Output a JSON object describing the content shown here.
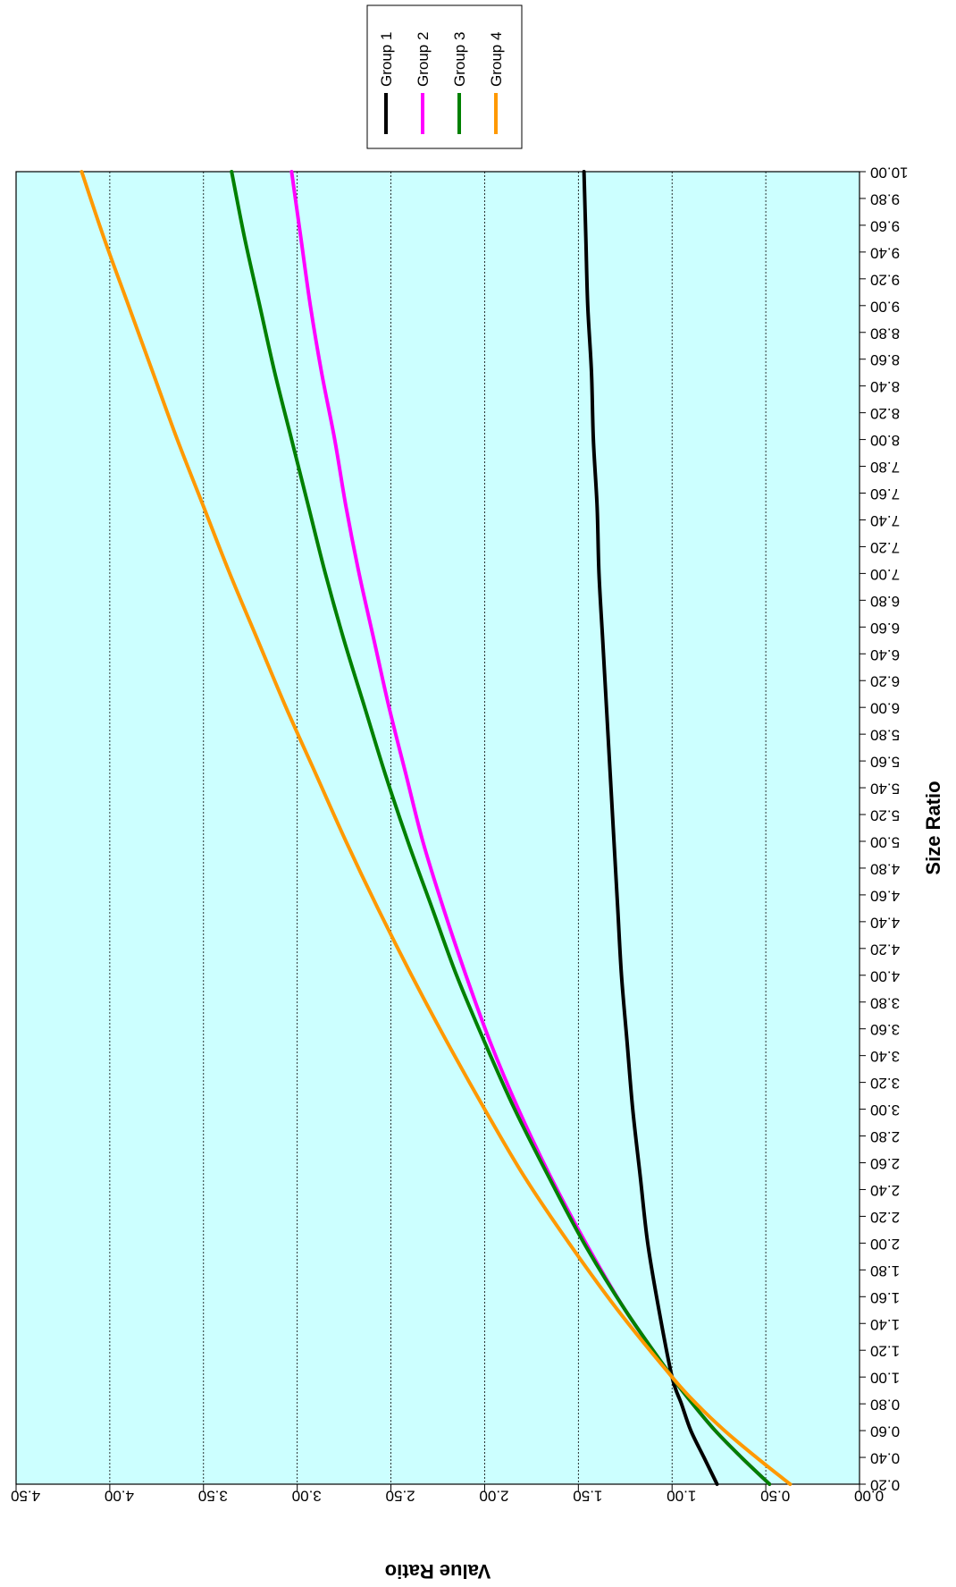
{
  "chart_data": {
    "type": "line",
    "orientation": "rotated-180",
    "xlabel": "Size Ratio",
    "ylabel": "Value Ratio",
    "xlim": [
      0.2,
      10.0
    ],
    "ylim": [
      0.0,
      4.5
    ],
    "x_ticks": [
      "0.20",
      "0.40",
      "0.60",
      "0.80",
      "1.00",
      "1.20",
      "1.40",
      "1.60",
      "1.80",
      "2.00",
      "2.20",
      "2.40",
      "2.60",
      "2.80",
      "3.00",
      "3.20",
      "3.40",
      "3.60",
      "3.80",
      "4.00",
      "4.20",
      "4.40",
      "4.60",
      "4.80",
      "5.00",
      "5.20",
      "5.40",
      "5.60",
      "5.80",
      "6.00",
      "6.20",
      "6.40",
      "6.60",
      "6.80",
      "7.00",
      "7.20",
      "7.40",
      "7.60",
      "7.80",
      "8.00",
      "8.20",
      "8.40",
      "8.60",
      "8.80",
      "9.00",
      "9.20",
      "9.40",
      "9.60",
      "9.80",
      "10.00"
    ],
    "y_ticks": [
      "0.00",
      "0.50",
      "1.00",
      "1.50",
      "2.00",
      "2.50",
      "3.00",
      "3.50",
      "4.00",
      "4.50"
    ],
    "grid": "horizontal",
    "legend_position": "top",
    "plot_background": "#ccffff",
    "series": [
      {
        "name": "Group 1",
        "color": "#000000",
        "x": [
          0.2,
          0.4,
          0.6,
          0.8,
          1.0,
          1.5,
          2.0,
          2.5,
          3.0,
          3.5,
          4.0,
          4.5,
          5.0,
          5.5,
          6.0,
          6.5,
          7.0,
          7.5,
          8.0,
          8.5,
          9.0,
          9.5,
          10.0
        ],
        "y": [
          0.76,
          0.83,
          0.9,
          0.95,
          1.0,
          1.07,
          1.13,
          1.17,
          1.21,
          1.24,
          1.27,
          1.29,
          1.31,
          1.33,
          1.35,
          1.37,
          1.39,
          1.4,
          1.42,
          1.43,
          1.45,
          1.46,
          1.47
        ]
      },
      {
        "name": "Group 2",
        "color": "#ff00ff",
        "x": [
          0.2,
          0.4,
          0.6,
          0.8,
          1.0,
          1.5,
          2.0,
          2.5,
          3.0,
          3.5,
          4.0,
          4.5,
          5.0,
          5.5,
          6.0,
          6.5,
          7.0,
          7.5,
          8.0,
          8.5,
          9.0,
          9.5,
          10.0
        ],
        "y": [
          0.48,
          0.63,
          0.77,
          0.89,
          1.0,
          1.25,
          1.46,
          1.65,
          1.82,
          1.97,
          2.1,
          2.22,
          2.33,
          2.42,
          2.51,
          2.59,
          2.67,
          2.74,
          2.8,
          2.87,
          2.93,
          2.98,
          3.03
        ]
      },
      {
        "name": "Group 3",
        "color": "#008000",
        "x": [
          0.2,
          0.4,
          0.6,
          0.8,
          1.0,
          1.5,
          2.0,
          2.5,
          3.0,
          3.5,
          4.0,
          4.5,
          5.0,
          5.5,
          6.0,
          6.5,
          7.0,
          7.5,
          8.0,
          8.5,
          9.0,
          9.5,
          10.0
        ],
        "y": [
          0.48,
          0.63,
          0.77,
          0.89,
          1.0,
          1.25,
          1.47,
          1.66,
          1.84,
          2.0,
          2.15,
          2.28,
          2.41,
          2.53,
          2.64,
          2.75,
          2.85,
          2.94,
          3.03,
          3.12,
          3.2,
          3.28,
          3.35
        ]
      },
      {
        "name": "Group 4",
        "color": "#ff9900",
        "x": [
          0.2,
          0.4,
          0.6,
          0.8,
          1.0,
          1.5,
          2.0,
          2.5,
          3.0,
          3.5,
          4.0,
          4.5,
          5.0,
          5.5,
          6.0,
          6.5,
          7.0,
          7.5,
          8.0,
          8.5,
          9.0,
          9.5,
          10.0
        ],
        "y": [
          0.37,
          0.55,
          0.72,
          0.87,
          1.0,
          1.29,
          1.55,
          1.79,
          2.0,
          2.2,
          2.39,
          2.57,
          2.74,
          2.9,
          3.06,
          3.21,
          3.36,
          3.5,
          3.64,
          3.77,
          3.9,
          4.03,
          4.15
        ]
      }
    ]
  }
}
